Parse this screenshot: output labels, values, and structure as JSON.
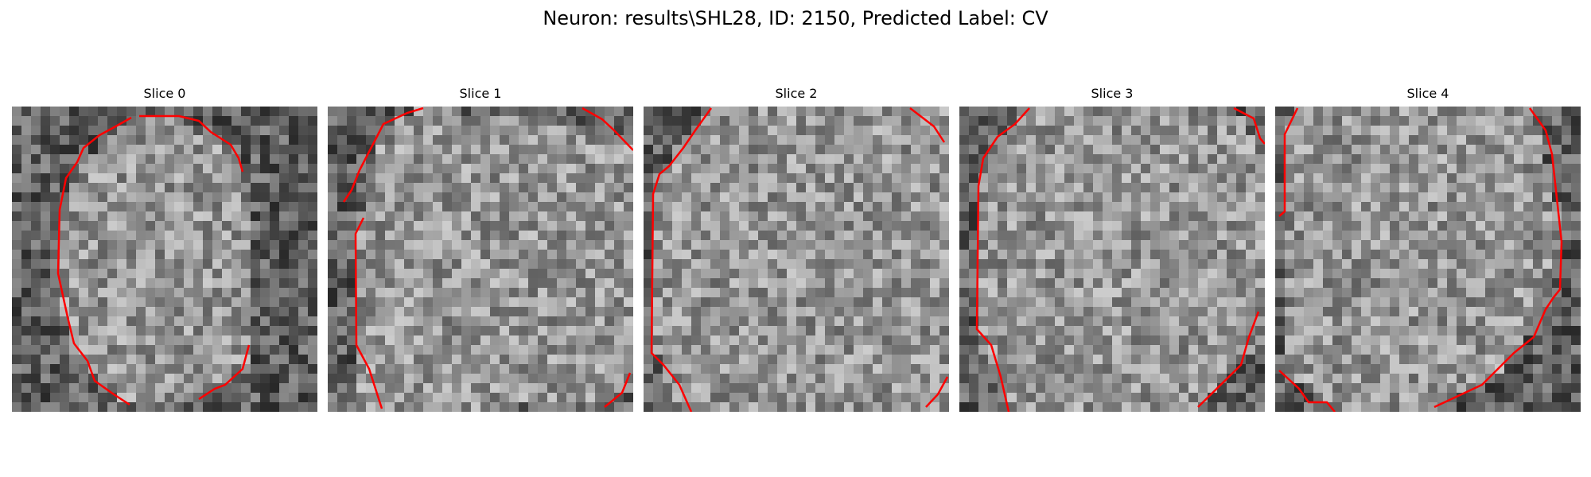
{
  "figure": {
    "title": "Neuron: results\\SHL28, ID: 2150, Predicted Label: CV",
    "contour_color": "#ff0000"
  },
  "slices": [
    {
      "title": "Slice 0"
    },
    {
      "title": "Slice 1"
    },
    {
      "title": "Slice 2"
    },
    {
      "title": "Slice 3"
    },
    {
      "title": "Slice 4"
    }
  ]
}
